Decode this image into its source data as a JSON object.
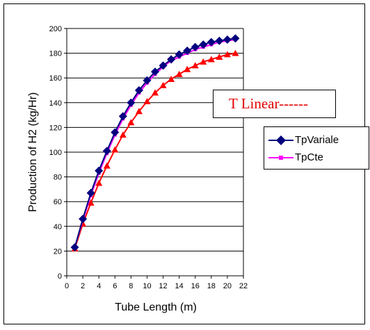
{
  "chart_data": {
    "type": "line",
    "xlabel": "Tube Length (m)",
    "ylabel": "Production of H2 (kg/Hr)",
    "xlim": [
      0,
      22
    ],
    "ylim": [
      0,
      200
    ],
    "xticks": [
      "0",
      "2",
      "4",
      "6",
      "8",
      "10",
      "12",
      "14",
      "16",
      "18",
      "20",
      "22"
    ],
    "yticks": [
      "0",
      "20",
      "40",
      "60",
      "80",
      "100",
      "120",
      "140",
      "160",
      "180",
      "200"
    ],
    "grid": "horizontal",
    "legend_position": "right",
    "annotation": "T Linear------",
    "x": [
      1,
      2,
      3,
      4,
      5,
      6,
      7,
      8,
      9,
      10,
      11,
      12,
      13,
      14,
      15,
      16,
      17,
      18,
      19,
      20,
      21
    ],
    "series": [
      {
        "name": "TpVariale",
        "color": "#000080",
        "marker": "diamond",
        "values": [
          23,
          46,
          67,
          85,
          101,
          116,
          129,
          140,
          150,
          158,
          165,
          170,
          175,
          179,
          182,
          185,
          187,
          189,
          190,
          191,
          192
        ]
      },
      {
        "name": "TpCte",
        "color": "#ff00ff",
        "marker": "square",
        "values": [
          23,
          45,
          65,
          83,
          99,
          114,
          127,
          138,
          148,
          156,
          163,
          169,
          174,
          177,
          180,
          183,
          185,
          187,
          189,
          190,
          191
        ]
      },
      {
        "color": "#ff0000",
        "marker": "triangle",
        "values": [
          22,
          42,
          59,
          75,
          89,
          102,
          114,
          124,
          133,
          141,
          148,
          154,
          159,
          163,
          167,
          170,
          173,
          175,
          177,
          179,
          180
        ]
      }
    ]
  }
}
